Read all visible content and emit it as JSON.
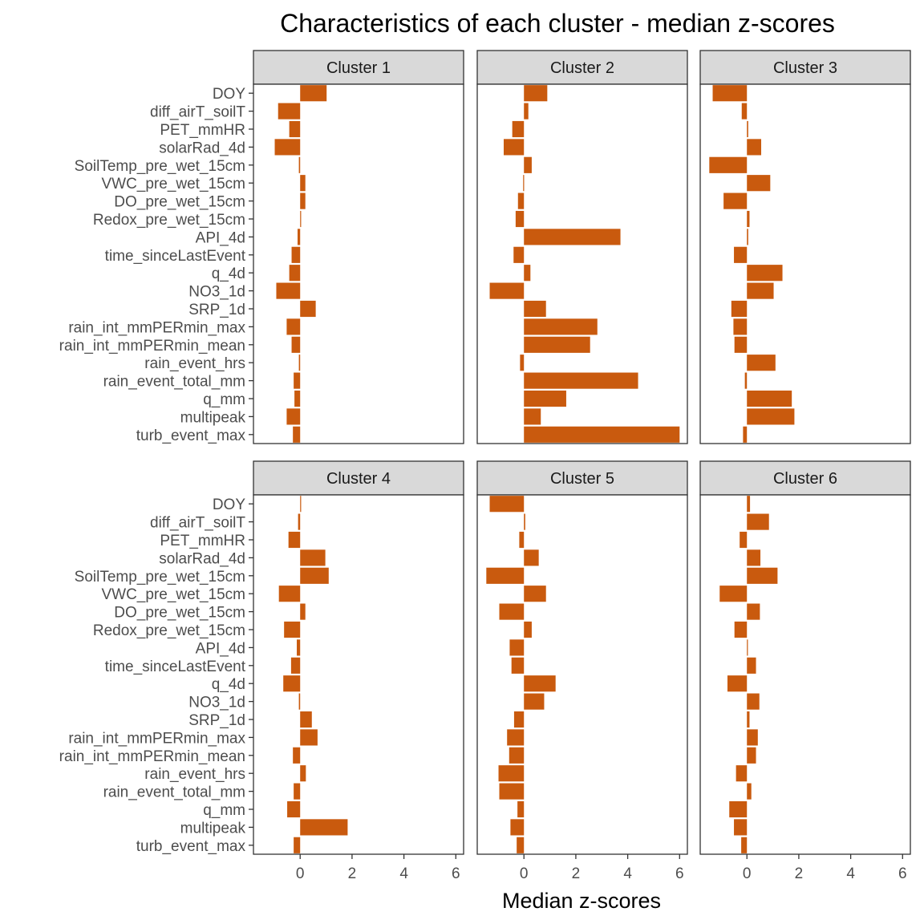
{
  "chart_data": {
    "type": "bar",
    "orientation": "horizontal",
    "title": "Characteristics of each cluster - median z-scores",
    "xlabel": "Median z-scores",
    "ylabel": "",
    "xlim": [
      -1.8,
      6.3
    ],
    "xticks": [
      0,
      2,
      4,
      6
    ],
    "bar_color": "#C95A0E",
    "categories": [
      "DOY",
      "diff_airT_soilT",
      "PET_mmHR",
      "solarRad_4d",
      "SoilTemp_pre_wet_15cm",
      "VWC_pre_wet_15cm",
      "DO_pre_wet_15cm",
      "Redox_pre_wet_15cm",
      "API_4d",
      "time_sinceLastEvent",
      "q_4d",
      "NO3_1d",
      "SRP_1d",
      "rain_int_mmPERmin_max",
      "rain_int_mmPERmin_mean",
      "rain_event_hrs",
      "rain_event_total_mm",
      "q_mm",
      "multipeak",
      "turb_event_max"
    ],
    "series": [
      {
        "name": "Cluster 1",
        "values": [
          1.02,
          -0.85,
          -0.42,
          -0.98,
          -0.05,
          0.2,
          0.2,
          0.03,
          -0.1,
          -0.33,
          -0.42,
          -0.92,
          0.6,
          -0.52,
          -0.33,
          -0.05,
          -0.25,
          -0.22,
          -0.52,
          -0.28
        ]
      },
      {
        "name": "Cluster 2",
        "values": [
          0.9,
          0.17,
          -0.45,
          -0.78,
          0.3,
          -0.03,
          -0.23,
          -0.32,
          3.72,
          -0.4,
          0.25,
          -1.32,
          0.85,
          2.83,
          2.55,
          -0.15,
          4.4,
          1.63,
          0.65,
          6.0
        ]
      },
      {
        "name": "Cluster 3",
        "values": [
          -1.32,
          -0.2,
          0.05,
          0.55,
          -1.45,
          0.9,
          -0.9,
          0.1,
          0.05,
          -0.5,
          1.37,
          1.03,
          -0.6,
          -0.52,
          -0.48,
          1.1,
          -0.08,
          1.73,
          1.83,
          -0.15
        ]
      },
      {
        "name": "Cluster 4",
        "values": [
          0.03,
          -0.08,
          -0.45,
          0.97,
          1.1,
          -0.82,
          0.2,
          -0.62,
          -0.13,
          -0.35,
          -0.65,
          -0.05,
          0.45,
          0.67,
          -0.28,
          0.22,
          -0.25,
          -0.5,
          1.83,
          -0.25
        ]
      },
      {
        "name": "Cluster 5",
        "values": [
          -1.32,
          0.05,
          -0.18,
          0.57,
          -1.45,
          0.85,
          -0.95,
          0.3,
          -0.55,
          -0.48,
          1.22,
          0.78,
          -0.38,
          -0.65,
          -0.57,
          -0.98,
          -0.95,
          -0.25,
          -0.52,
          -0.28
        ]
      },
      {
        "name": "Cluster 6",
        "values": [
          0.12,
          0.85,
          -0.28,
          0.52,
          1.18,
          -1.05,
          0.5,
          -0.48,
          0.0,
          0.35,
          -0.75,
          0.48,
          0.1,
          0.42,
          0.35,
          -0.42,
          0.17,
          -0.68,
          -0.5,
          -0.22
        ]
      }
    ]
  }
}
